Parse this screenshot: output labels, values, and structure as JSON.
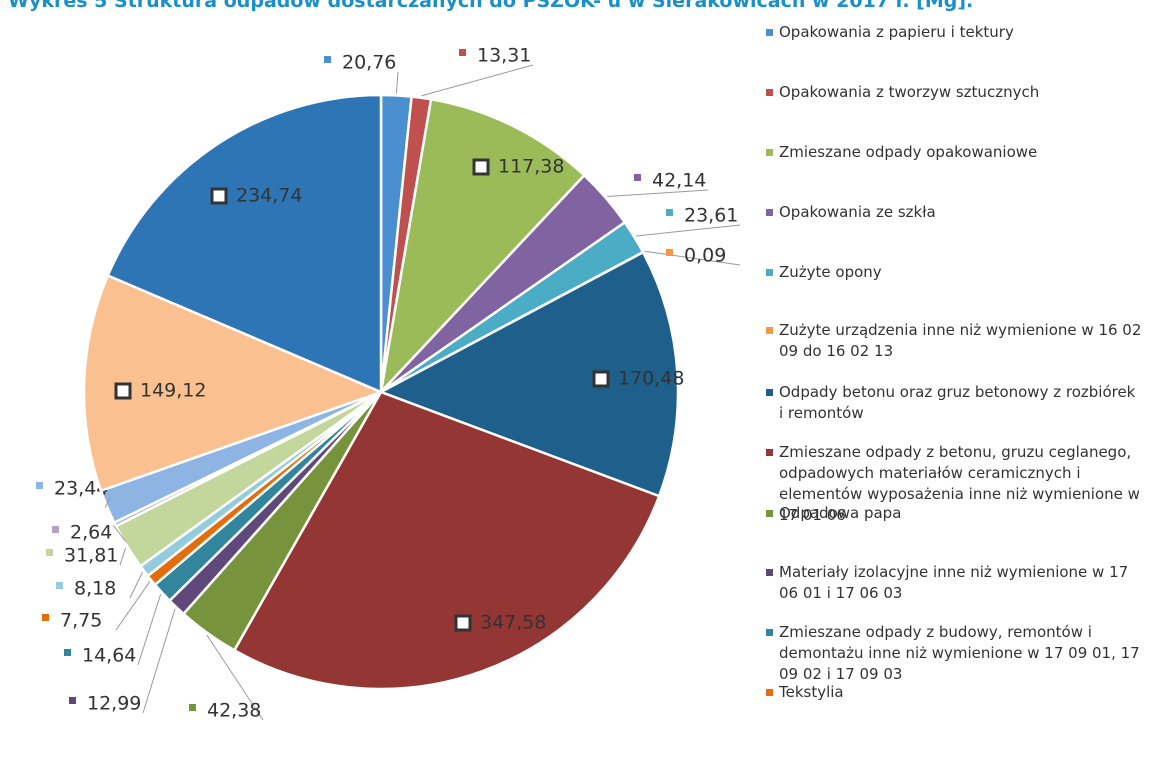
{
  "chart_data": {
    "type": "pie",
    "title": "Wykres 5 Struktura odpadów dostarczanych do PSZOK- u w Sierakowicach w 2017 r. [Mg].",
    "categories": [
      "Opakowania z papieru i tektury",
      "Opakowania z tworzyw sztucznych",
      "Zmieszane odpady opakowaniowe",
      "Opakowania ze szkła",
      "Zużyte opony",
      "Zużyte urządzenia inne niż wymienione w 16 02 09 do 16 02 13",
      "Odpady betonu oraz gruz betonowy z rozbiórek i remontów",
      "Zmieszane odpady z betonu, gruzu ceglanego, odpadowych materiałów ceramicznych i elementów wyposażenia inne niż wymienione w 17 01 06",
      "Odpadowa papa",
      "Materiały izolacyjne inne niż wymienione w 17 06 01 i 17 06 03",
      "Zmieszane odpady z budowy, remontów i demontażu inne niż wymienione w 17 09 01, 17 09 02 i 17 09 03",
      "Tekstylia",
      null,
      null,
      null,
      null,
      null,
      null
    ],
    "values": [
      20.76,
      13.31,
      117.38,
      42.14,
      23.61,
      0.09,
      170.48,
      347.58,
      42.38,
      12.99,
      14.64,
      7.75,
      8.18,
      31.81,
      2.64,
      23.44,
      149.12,
      234.74
    ],
    "value_labels": [
      "20,76",
      "13,31",
      "117,38",
      "42,14",
      "23,61",
      "0,09",
      "170,48",
      "347,58",
      "42,38",
      "12,99",
      "14,64",
      "7,75",
      "8,18",
      "31,81",
      "2,64",
      "23,44",
      "149,12",
      "234,74"
    ],
    "colors": [
      "#4a8fd0",
      "#c0504d",
      "#9bbb59",
      "#8064a2",
      "#4bacc6",
      "#f79646",
      "#1f5f8b",
      "#943634",
      "#77933c",
      "#5f497a",
      "#31859c",
      "#e46c0a",
      "#93cddd",
      "#c3d69b",
      "#b3a2c7",
      "#8eb4e3",
      "#fac090",
      "#2e75b6"
    ]
  }
}
